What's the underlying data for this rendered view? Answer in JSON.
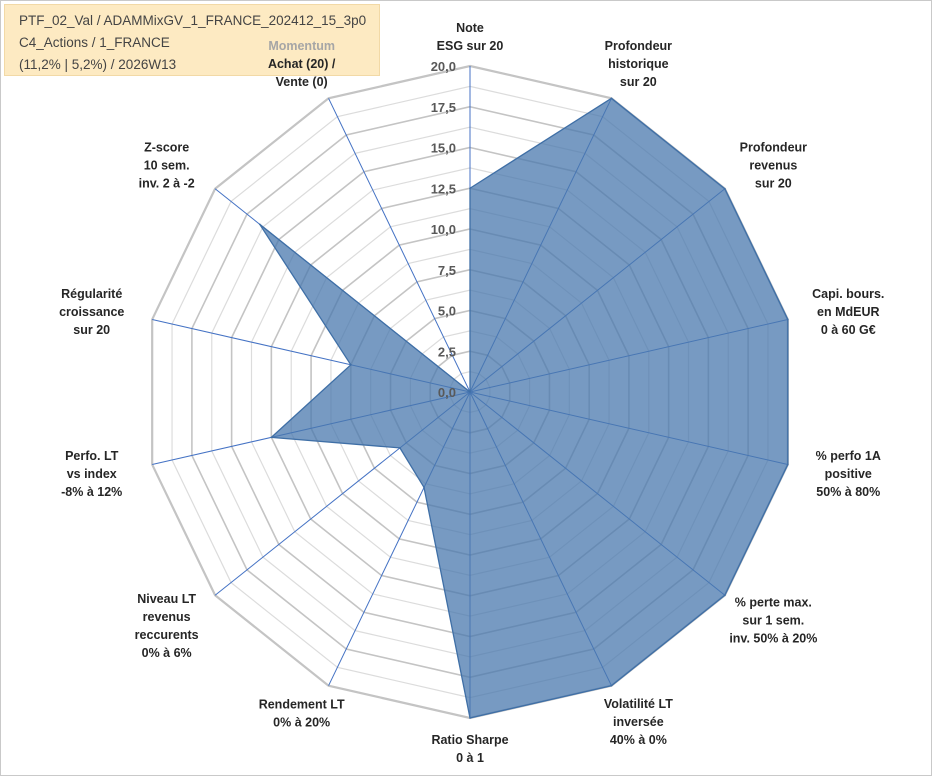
{
  "header": {
    "line1": "PTF_02_Val / ADAMMixGV_1_FRANCE_202412_15_3p0",
    "line2": "C4_Actions / 1_FRANCE",
    "line3": "(11,2% | 5,2%) / 2026W13"
  },
  "colors": {
    "fill": "#4a78ad",
    "fill_opacity": 0.75,
    "series_line": "#3f6fa6",
    "spoke": "#4472c4",
    "grid_minor": "#dcdcdc",
    "grid_major": "#c4c4c4",
    "header_bg": "#fdeac2"
  },
  "chart_data": {
    "type": "radar",
    "rmin": 0,
    "rmax": 20,
    "ticks": [
      "0,0",
      "2,5",
      "5,0",
      "7,5",
      "10,0",
      "12,5",
      "15,0",
      "17,5",
      "20,0"
    ],
    "tick_values": [
      0,
      2.5,
      5,
      7.5,
      10,
      12.5,
      15,
      17.5,
      20
    ],
    "minor_step": 1.25,
    "categories": [
      {
        "lines": [
          "Note",
          "ESG sur 20"
        ]
      },
      {
        "lines": [
          "Profondeur",
          "historique",
          "sur 20"
        ]
      },
      {
        "lines": [
          "Profondeur",
          "revenus",
          "sur 20"
        ]
      },
      {
        "lines": [
          "Capi. bours.",
          "en MdEUR",
          "0 à 60 G€"
        ]
      },
      {
        "lines": [
          "% perfo 1A",
          "positive",
          "50% à 80%"
        ]
      },
      {
        "lines": [
          "% perte max.",
          "sur 1 sem.",
          "inv. 50% à 20%"
        ]
      },
      {
        "lines": [
          "Volatilité LT",
          "inversée",
          "40% à 0%"
        ]
      },
      {
        "lines": [
          "Ratio Sharpe",
          "0 à 1"
        ]
      },
      {
        "lines": [
          "Rendement LT",
          "0% à 20%"
        ]
      },
      {
        "lines": [
          "Niveau LT",
          "revenus",
          "reccurents",
          "0% à 6%"
        ]
      },
      {
        "lines": [
          "Perfo. LT",
          "vs index",
          "-8% à 12%"
        ]
      },
      {
        "lines": [
          "Régularité",
          "croissance",
          "sur 20"
        ]
      },
      {
        "lines": [
          "Z-score",
          "10 sem.",
          "inv. 2 à -2"
        ]
      },
      {
        "lines": [
          "Achat (20) /",
          "Vente (0)"
        ],
        "prefix": "Momentum"
      }
    ],
    "series": [
      {
        "values": [
          12.5,
          20,
          20,
          20,
          20,
          20,
          20,
          20,
          6.5,
          5.5,
          12.5,
          7.5,
          16.5,
          0
        ]
      }
    ]
  }
}
